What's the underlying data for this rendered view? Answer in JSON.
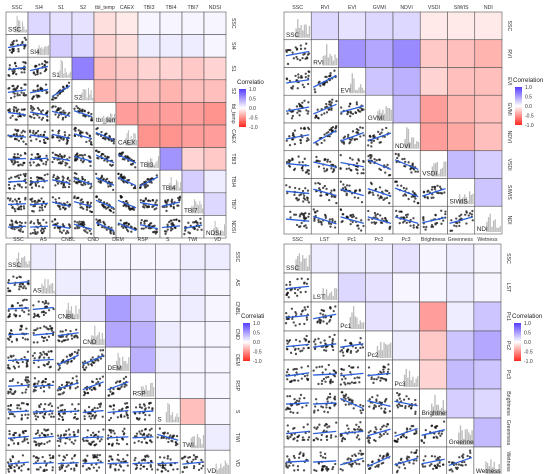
{
  "chart_data": [
    {
      "type": "heatmap",
      "legend_title": "Correlation",
      "legend_ticks": [
        "1.0",
        "0.5",
        "0.0",
        "-0.5",
        "-1.0"
      ],
      "variables": [
        "SSC",
        "SI4",
        "S1",
        "S2",
        "tbl_temp",
        "CAEX",
        "TBI3",
        "TBI4",
        "TBI7",
        "NDSI"
      ],
      "correlation": [
        [
          1,
          0.2,
          0.15,
          0.15,
          -0.15,
          -0.1,
          0.05,
          0.05,
          0.05,
          0.05
        ],
        [
          0.2,
          1,
          0.25,
          0.2,
          -0.2,
          -0.15,
          0.1,
          0.1,
          0.1,
          0.05
        ],
        [
          0.15,
          0.25,
          1,
          0.65,
          -0.3,
          -0.25,
          -0.2,
          -0.2,
          -0.25,
          -0.2
        ],
        [
          0.15,
          0.2,
          0.65,
          1,
          -0.35,
          -0.3,
          -0.3,
          -0.35,
          -0.3,
          -0.3
        ],
        [
          -0.15,
          -0.2,
          -0.3,
          -0.35,
          1,
          -0.45,
          -0.45,
          -0.45,
          -0.45,
          -0.5
        ],
        [
          -0.1,
          -0.15,
          -0.25,
          -0.3,
          -0.45,
          1,
          -0.5,
          -0.5,
          -0.45,
          -0.45
        ],
        [
          0.05,
          0.1,
          -0.2,
          -0.3,
          -0.45,
          -0.5,
          1,
          0.55,
          -0.2,
          -0.25
        ],
        [
          0.05,
          0.1,
          -0.2,
          -0.35,
          -0.45,
          -0.5,
          0.55,
          1,
          0.25,
          0.1
        ],
        [
          0.05,
          0.1,
          -0.25,
          -0.3,
          -0.45,
          -0.45,
          -0.2,
          0.25,
          1,
          0.2
        ],
        [
          0.05,
          0.05,
          -0.2,
          -0.3,
          -0.5,
          -0.45,
          -0.25,
          0.1,
          0.2,
          1
        ]
      ]
    },
    {
      "type": "heatmap",
      "legend_title": "Correlation",
      "legend_ticks": [
        "1.0",
        "0.5",
        "0.0",
        "-0.5",
        "-1.0"
      ],
      "variables": [
        "SSC",
        "RVI",
        "EVI",
        "GVMI",
        "NDVI",
        "VSDI",
        "SIWIS",
        "NDI"
      ],
      "correlation": [
        [
          1,
          0.2,
          0.15,
          0.2,
          0.2,
          -0.1,
          -0.1,
          -0.1
        ],
        [
          0.2,
          1,
          0.55,
          0.45,
          0.6,
          -0.25,
          -0.3,
          -0.35
        ],
        [
          0.15,
          0.55,
          1,
          0.3,
          0.4,
          -0.2,
          -0.3,
          -0.3
        ],
        [
          0.2,
          0.45,
          0.3,
          1,
          0.35,
          -0.45,
          -0.35,
          -0.3
        ],
        [
          0.2,
          0.6,
          0.4,
          0.35,
          1,
          -0.45,
          -0.4,
          -0.3
        ],
        [
          -0.1,
          -0.25,
          -0.2,
          -0.45,
          -0.45,
          1,
          0.35,
          0.25
        ],
        [
          -0.1,
          -0.3,
          -0.3,
          -0.35,
          -0.4,
          0.35,
          1,
          0.3
        ],
        [
          -0.1,
          -0.35,
          -0.3,
          -0.3,
          -0.3,
          0.25,
          0.3,
          1
        ]
      ]
    },
    {
      "type": "heatmap",
      "legend_title": "Correlation",
      "legend_ticks": [
        "1.0",
        "0.5",
        "0.0",
        "-0.5",
        "-1.0"
      ],
      "variables": [
        "SSC",
        "AS",
        "CNBL",
        "CND",
        "DEM",
        "RSP",
        "S",
        "TWI",
        "VD"
      ],
      "correlation": [
        [
          1,
          0.1,
          0.05,
          0.05,
          0.05,
          0.05,
          0.05,
          0.1,
          0.1
        ],
        [
          0.1,
          1,
          0.1,
          0.1,
          0.05,
          0.05,
          0.05,
          0.1,
          0.05
        ],
        [
          0.05,
          0.1,
          1,
          0.15,
          0.5,
          0.3,
          0.05,
          0.1,
          0.05
        ],
        [
          0.05,
          0.1,
          0.15,
          1,
          0.45,
          0.4,
          0.1,
          0.05,
          0.05
        ],
        [
          0.05,
          0.05,
          0.5,
          0.45,
          1,
          0.4,
          0.1,
          0.05,
          0.05
        ],
        [
          0.05,
          0.05,
          0.3,
          0.4,
          0.4,
          1,
          0.05,
          0.05,
          0.05
        ],
        [
          0.05,
          0.05,
          0.05,
          0.1,
          0.1,
          0.05,
          1,
          -0.3,
          0.05
        ],
        [
          0.1,
          0.1,
          0.1,
          0.05,
          0.05,
          0.05,
          -0.3,
          1,
          0.1
        ],
        [
          0.1,
          0.05,
          0.05,
          0.05,
          0.05,
          0.05,
          0.05,
          0.1,
          1
        ]
      ]
    },
    {
      "type": "heatmap",
      "legend_title": "Correlation",
      "legend_ticks": [
        "1.0",
        "0.5",
        "0.0",
        "-0.5",
        "-1.0"
      ],
      "variables": [
        "SSC",
        "LST",
        "Pc1",
        "Pc2",
        "Pc3",
        "Brightness",
        "Greenness",
        "Wetness"
      ],
      "correlation": [
        [
          1,
          0.1,
          0.1,
          0.1,
          0.15,
          0.05,
          0.1,
          0.05
        ],
        [
          0.1,
          1,
          0.2,
          0.15,
          0.05,
          0.05,
          0.1,
          0.05
        ],
        [
          0.1,
          0.2,
          1,
          0.15,
          0.1,
          -0.45,
          0.1,
          0.3
        ],
        [
          0.1,
          0.15,
          0.15,
          1,
          0.1,
          -0.25,
          0.3,
          0.45
        ],
        [
          0.15,
          0.05,
          0.1,
          0.1,
          1,
          -0.2,
          0.35,
          0.3
        ],
        [
          0.05,
          0.05,
          -0.45,
          -0.25,
          -0.2,
          1,
          0.25,
          0.2
        ],
        [
          0.1,
          0.1,
          0.1,
          0.3,
          0.35,
          0.25,
          1,
          0.35
        ],
        [
          0.05,
          0.05,
          0.3,
          0.45,
          0.3,
          0.2,
          0.35,
          1
        ]
      ]
    }
  ]
}
